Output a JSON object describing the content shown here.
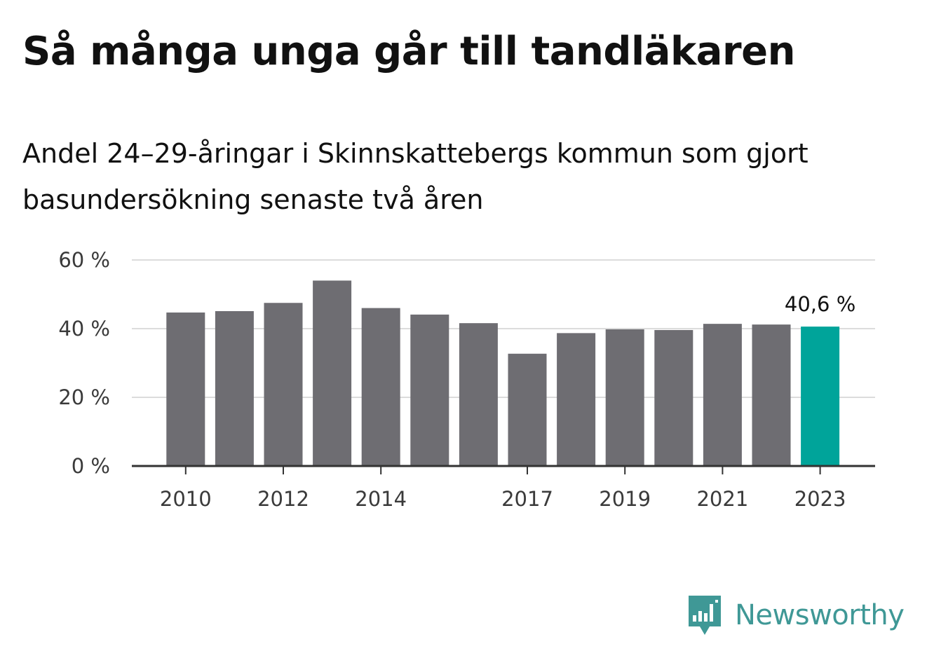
{
  "title": "Så många unga går till tandläkaren",
  "subtitle": "Andel 24–29-åringar i Skinnskattebergs kommun som gjort basundersökning senaste två åren",
  "brand": {
    "name": "Newsworthy",
    "logo_icon": "newsworthy-logo-icon",
    "color": "#3f9896"
  },
  "colors": {
    "bar": "#6e6d72",
    "highlight": "#00a49a",
    "grid": "#dcdcdc",
    "axis": "#333333"
  },
  "chart_data": {
    "type": "bar",
    "categories": [
      "2010",
      "2011",
      "2012",
      "2013",
      "2014",
      "2015",
      "2016",
      "2017",
      "2018",
      "2019",
      "2020",
      "2021",
      "2022",
      "2023"
    ],
    "values": [
      44.7,
      45.1,
      47.5,
      54.0,
      46.0,
      44.1,
      41.6,
      32.7,
      38.7,
      39.8,
      39.6,
      41.4,
      41.2,
      40.6
    ],
    "highlight_index": 13,
    "ylim": [
      0,
      60
    ],
    "yticks": [
      0,
      20,
      40,
      60
    ],
    "ytick_labels": [
      "0 %",
      "20 %",
      "40 %",
      "60 %"
    ],
    "xticks_shown": [
      "2010",
      "2012",
      "2014",
      "2017",
      "2019",
      "2021",
      "2023"
    ],
    "data_label": "40,6 %",
    "xlabel": "",
    "ylabel": "",
    "grid": true,
    "legend": false
  }
}
